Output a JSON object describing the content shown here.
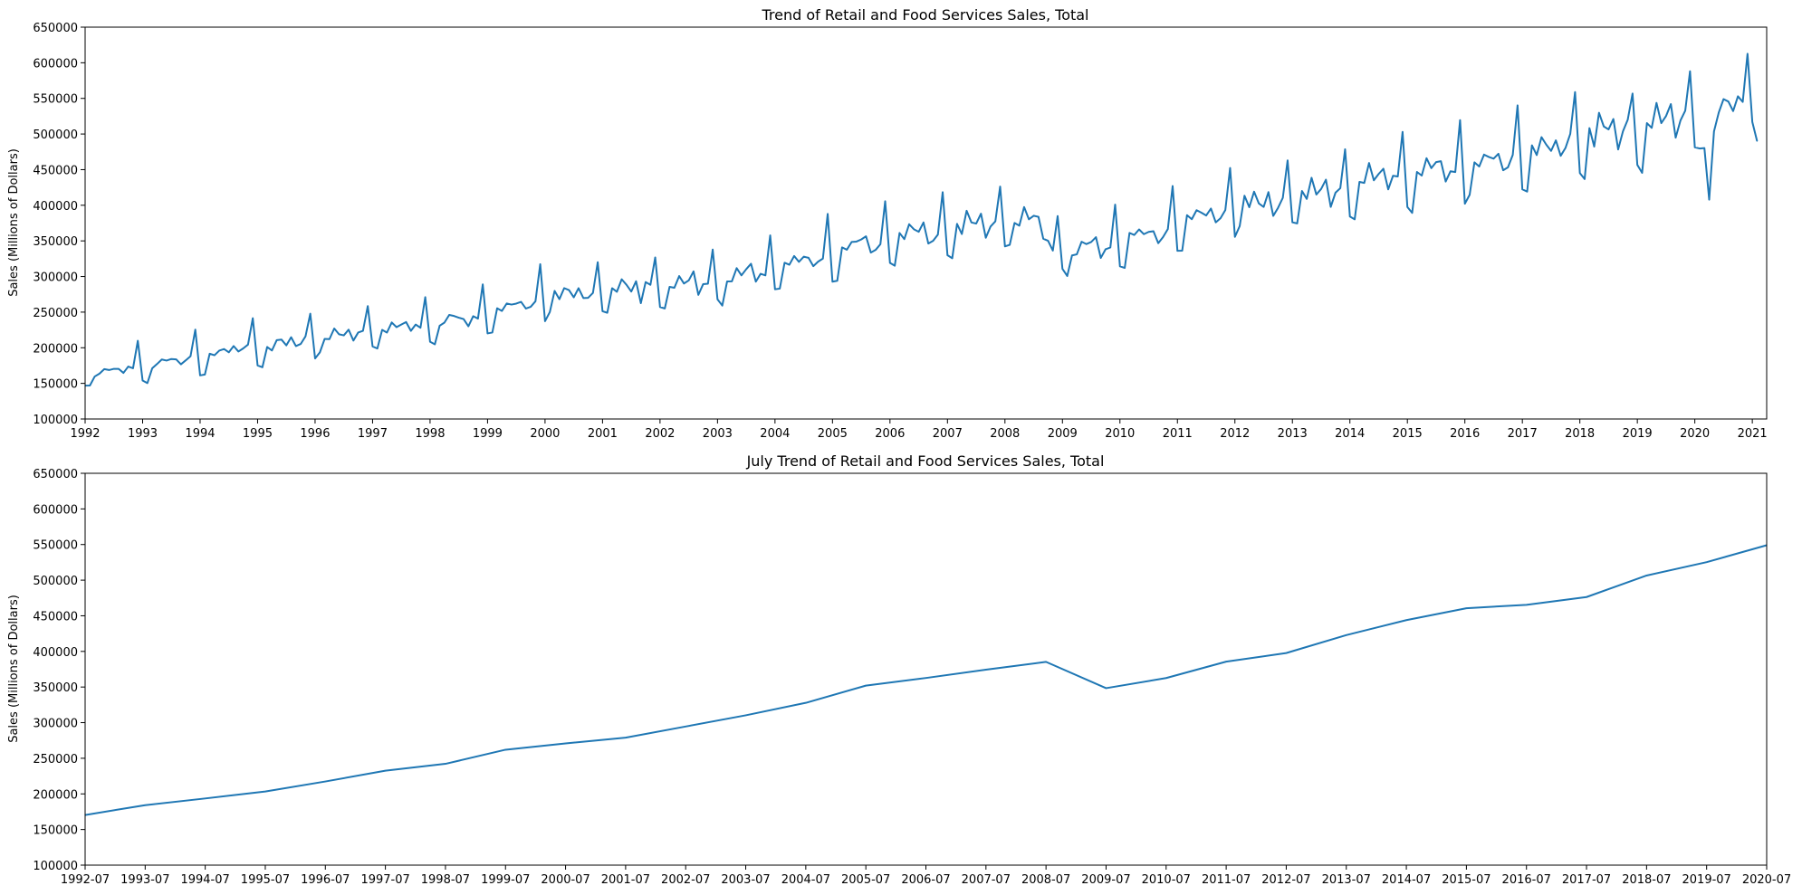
{
  "chart_data": [
    {
      "type": "line",
      "title": "Trend of Retail and Food Services Sales, Total",
      "xlabel": "",
      "ylabel": "Sales (Millions of Dollars)",
      "ylim": [
        100000,
        650000
      ],
      "xlim": [
        1992.0,
        2021.25
      ],
      "yticks": [
        100000,
        150000,
        200000,
        250000,
        300000,
        350000,
        400000,
        450000,
        500000,
        550000,
        600000,
        650000
      ],
      "xticks": [
        1992,
        1993,
        1994,
        1995,
        1996,
        1997,
        1998,
        1999,
        2000,
        2001,
        2002,
        2003,
        2004,
        2005,
        2006,
        2007,
        2008,
        2009,
        2010,
        2011,
        2012,
        2013,
        2014,
        2015,
        2016,
        2017,
        2018,
        2019,
        2020,
        2021
      ],
      "start": "1992-01",
      "frequency": "monthly",
      "grid": false,
      "color": "#1f77b4",
      "series": [
        {
          "name": "Retail and Food Services Sales, Total",
          "values": [
            146900,
            147000,
            159600,
            163700,
            170000,
            168700,
            170400,
            170300,
            164700,
            173600,
            171200,
            209800,
            154000,
            150400,
            171100,
            177100,
            183500,
            182000,
            184200,
            183700,
            176800,
            182300,
            188100,
            225400,
            161200,
            162400,
            191600,
            189500,
            196000,
            198200,
            193600,
            202400,
            194700,
            199100,
            204400,
            241500,
            175200,
            172600,
            201100,
            196200,
            210700,
            211400,
            203300,
            214800,
            202300,
            205300,
            216000,
            247800,
            185000,
            193500,
            212400,
            212100,
            227000,
            218900,
            217400,
            225400,
            210100,
            221400,
            223700,
            258500,
            201900,
            198900,
            225100,
            221300,
            235500,
            228900,
            232600,
            236100,
            223700,
            232600,
            228100,
            271000,
            208400,
            204800,
            230900,
            235300,
            246100,
            244600,
            242200,
            240300,
            230100,
            244300,
            240900,
            289000,
            220100,
            221400,
            255400,
            251700,
            262100,
            260600,
            262000,
            264400,
            255000,
            257400,
            265200,
            317300,
            237300,
            250100,
            279800,
            268200,
            283700,
            280900,
            270800,
            283600,
            269800,
            270100,
            276900,
            320100,
            251200,
            249100,
            283600,
            278600,
            296100,
            288400,
            278900,
            293400,
            262600,
            292200,
            288300,
            326800,
            257100,
            255100,
            285500,
            284200,
            300600,
            290100,
            294600,
            307200,
            274200,
            289200,
            289900,
            337800,
            268000,
            259200,
            293000,
            293200,
            311700,
            301600,
            310300,
            317900,
            292800,
            303800,
            301500,
            357700,
            282100,
            283000,
            319300,
            316500,
            328800,
            320600,
            327800,
            326300,
            314500,
            320900,
            325100,
            387800,
            292700,
            294000,
            340900,
            337600,
            348500,
            349000,
            352000,
            356400,
            333600,
            337300,
            345300,
            405600,
            319100,
            315100,
            361100,
            352500,
            373400,
            366300,
            362700,
            375900,
            346300,
            350100,
            358800,
            418400,
            329900,
            325600,
            373900,
            359600,
            392300,
            375900,
            374300,
            388200,
            354400,
            370200,
            377500,
            426200,
            342300,
            344400,
            375200,
            371300,
            397500,
            380300,
            385300,
            383700,
            353000,
            350100,
            336400,
            384800,
            310800,
            300700,
            329600,
            331100,
            348800,
            345500,
            348400,
            355200,
            326000,
            338200,
            340700,
            400900,
            314300,
            312000,
            361200,
            358300,
            366100,
            359400,
            362600,
            363500,
            346800,
            355300,
            366600,
            427000,
            336100,
            336300,
            386100,
            380400,
            393100,
            389600,
            385600,
            395400,
            376000,
            381800,
            393300,
            452400,
            355700,
            370700,
            413400,
            397300,
            419100,
            402500,
            397700,
            418400,
            385100,
            396300,
            410400,
            462900,
            376000,
            374500,
            420000,
            408900,
            438600,
            415100,
            422900,
            435900,
            397700,
            417700,
            424000,
            478600,
            384200,
            380300,
            432800,
            431400,
            459300,
            435000,
            443900,
            451300,
            422300,
            441300,
            440400,
            503000,
            397500,
            389300,
            446700,
            441700,
            466100,
            452100,
            460600,
            461900,
            433300,
            447700,
            446600,
            519500,
            402200,
            414700,
            460300,
            454400,
            471100,
            467800,
            465400,
            472300,
            449100,
            453300,
            470800,
            540200,
            422300,
            419200,
            484100,
            470500,
            495600,
            485000,
            476300,
            491100,
            469400,
            480400,
            500200,
            558900,
            445200,
            436800,
            508300,
            482400,
            529800,
            510600,
            506500,
            521100,
            478300,
            503700,
            520200,
            556800,
            456700,
            445500,
            515300,
            508600,
            543700,
            515300,
            525300,
            542000,
            494900,
            518900,
            532800,
            588100,
            481300,
            479700,
            480300,
            407800,
            503600,
            530200,
            549000,
            545600,
            532200,
            552900,
            545000,
            612600,
            517000,
            490000
          ]
        }
      ]
    },
    {
      "type": "line",
      "title": "July Trend of Retail and Food Services Sales, Total",
      "xlabel": "",
      "ylabel": "Sales (Millions of Dollars)",
      "ylim": [
        100000,
        650000
      ],
      "yticks": [
        100000,
        150000,
        200000,
        250000,
        300000,
        350000,
        400000,
        450000,
        500000,
        550000,
        600000,
        650000
      ],
      "categories": [
        "1992-07",
        "1993-07",
        "1994-07",
        "1995-07",
        "1996-07",
        "1997-07",
        "1998-07",
        "1999-07",
        "2000-07",
        "2001-07",
        "2002-07",
        "2003-07",
        "2004-07",
        "2005-07",
        "2006-07",
        "2007-07",
        "2008-07",
        "2009-07",
        "2010-07",
        "2011-07",
        "2012-07",
        "2013-07",
        "2014-07",
        "2015-07",
        "2016-07",
        "2017-07",
        "2018-07",
        "2019-07",
        "2020-07"
      ],
      "grid": false,
      "color": "#1f77b4",
      "series": [
        {
          "name": "July Retail and Food Services Sales",
          "values": [
            170400,
            184200,
            193600,
            203300,
            217400,
            232600,
            242200,
            262000,
            270800,
            278900,
            294600,
            310300,
            327800,
            352000,
            362700,
            374300,
            385300,
            348400,
            362600,
            385600,
            397700,
            422900,
            443900,
            460600,
            465400,
            476300,
            506500,
            525300,
            549000
          ]
        }
      ]
    }
  ]
}
